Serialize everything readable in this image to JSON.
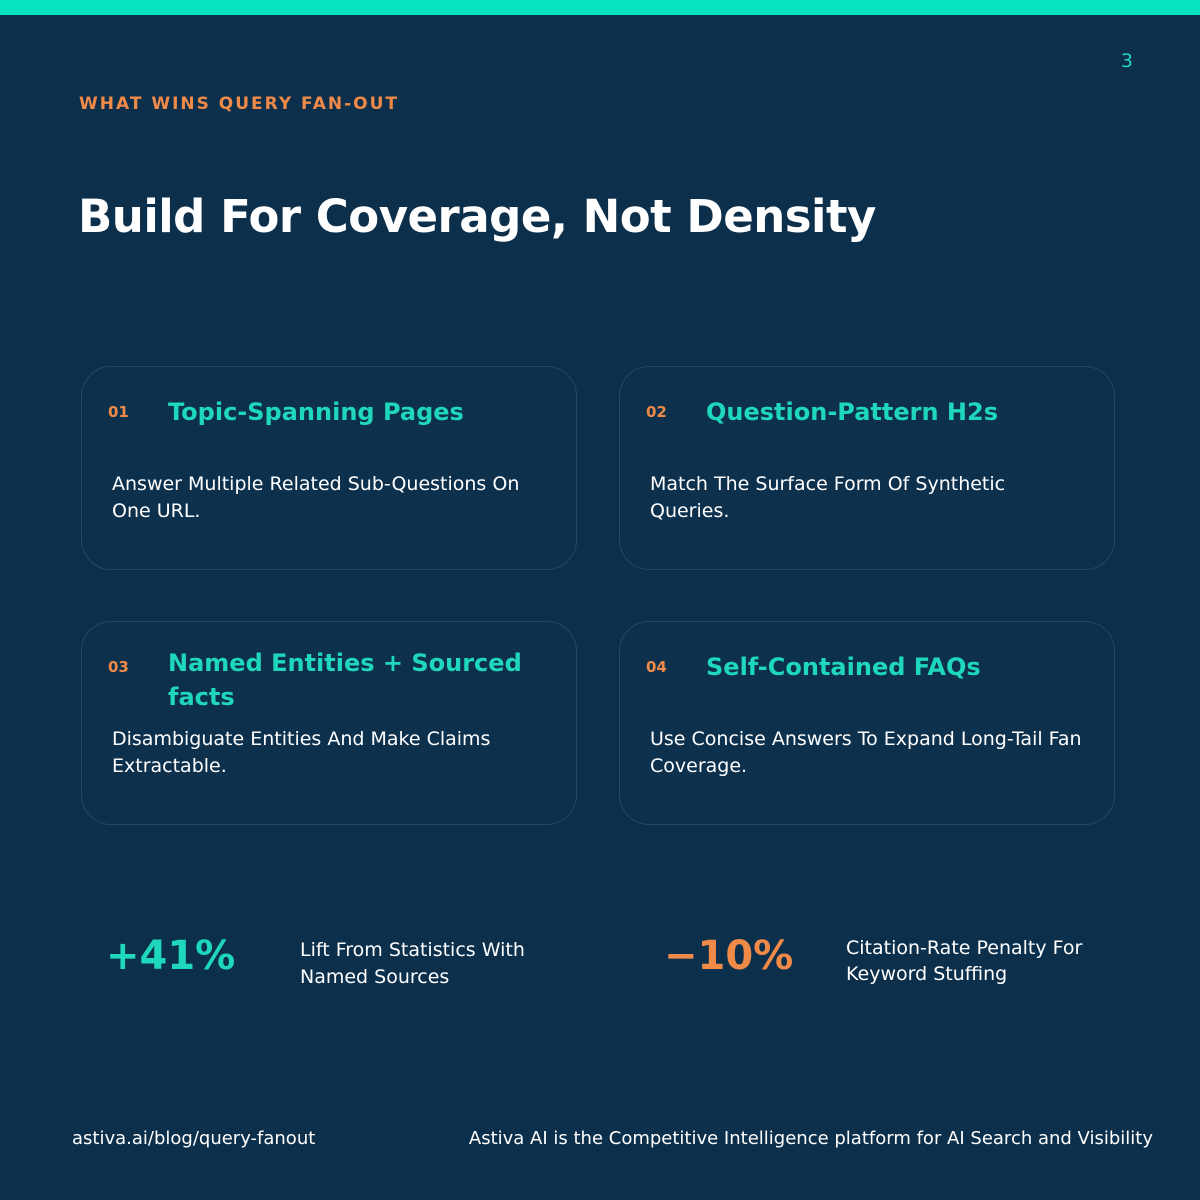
{
  "page_number": "3",
  "eyebrow": "WHAT WINS QUERY FAN-OUT",
  "headline": "Build For Coverage, Not Density",
  "cards": [
    {
      "num": "01",
      "title": "Topic-Spanning Pages",
      "desc": "Answer Multiple Related Sub-Questions On One URL."
    },
    {
      "num": "02",
      "title": "Question-Pattern H2s",
      "desc": "Match The Surface Form Of Synthetic Queries."
    },
    {
      "num": "03",
      "title": "Named Entities + Sourced facts",
      "desc": "Disambiguate Entities And Make Claims Extractable."
    },
    {
      "num": "04",
      "title": "Self-Contained FAQs",
      "desc": "Use Concise Answers To Expand Long-Tail Fan Coverage."
    }
  ],
  "stats": [
    {
      "value": "+41%",
      "caption": "Lift From Statistics With Named Sources",
      "color": "#1fd7bd"
    },
    {
      "value": "−10%",
      "caption": "Citation-Rate Penalty For Keyword Stuffing",
      "color": "#f08a48"
    }
  ],
  "footer": {
    "url": "astiva.ai/blog/query-fanout",
    "tagline": "Astiva AI is the Competitive Intelligence platform for AI Search and Visibility"
  },
  "colors": {
    "accent": "#05e3c0",
    "background": "#0c2f4b",
    "orange": "#f08a48",
    "teal": "#1fd7bd"
  }
}
